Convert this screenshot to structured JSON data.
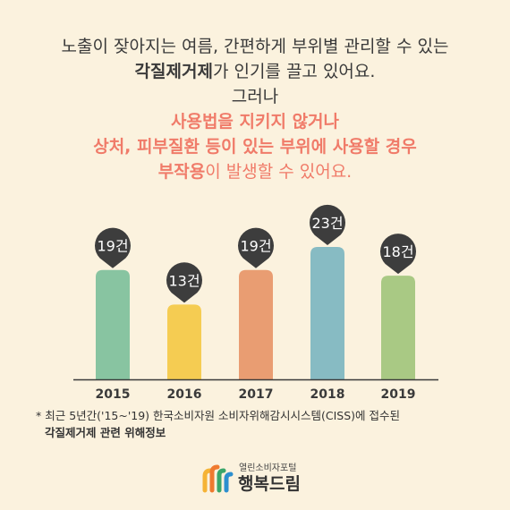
{
  "intro": {
    "line1": "노출이 잦아지는 여름, 간편하게 부위별 관리할 수 있는",
    "line2_bold": "각질제거제",
    "line2_rest": "가 인기를 끌고 있어요.",
    "line3": "그러나",
    "line4": "사용법을 지키지 않거나",
    "line5": "상처, 피부질환 등이 있는 부위에 사용할 경우",
    "line6_bold": "부작용",
    "line6_rest": "이 발생할 수 있어요."
  },
  "chart_data": {
    "type": "bar",
    "categories": [
      "2015",
      "2016",
      "2017",
      "2018",
      "2019"
    ],
    "values": [
      19,
      13,
      19,
      23,
      18
    ],
    "data_labels": [
      "19건",
      "13건",
      "19건",
      "23건",
      "18건"
    ],
    "bar_colors": [
      "#88c4a1",
      "#f5cc52",
      "#e99d72",
      "#87bbc3",
      "#a9c984"
    ],
    "pin_color": "#3d3d3d",
    "axis_color": "#3a3a3a",
    "title": "",
    "xlabel": "",
    "ylabel": "",
    "ylim": [
      0,
      23
    ]
  },
  "footnote": {
    "line1": "* 최근 5년간('15~'19) 한국소비자원 소비자위해감시시스템(CISS)에 접수된",
    "line2": "각질제거제 관련 위해정보"
  },
  "logo": {
    "small": "열린소비자포털",
    "big": "행복드림",
    "colors": [
      "#f5b335",
      "#ef7a2f",
      "#3aa66a",
      "#2c8fcf"
    ]
  }
}
